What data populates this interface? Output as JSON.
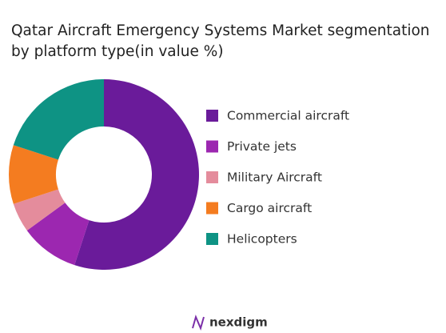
{
  "chart_data": {
    "type": "donut",
    "title": "Qatar Aircraft Emergency Systems Market segmentation by platform type(in value %)",
    "categories": [
      "Commercial aircraft",
      "Private jets",
      "Military Aircraft",
      "Cargo aircraft",
      "Helicopters"
    ],
    "values": [
      55,
      10,
      5,
      10,
      20
    ],
    "colors": [
      "#6a1b9a",
      "#9c27b0",
      "#e48c9c",
      "#f47c20",
      "#0e9384"
    ],
    "legend": "right"
  },
  "footer": {
    "brand": "nexdigm"
  }
}
